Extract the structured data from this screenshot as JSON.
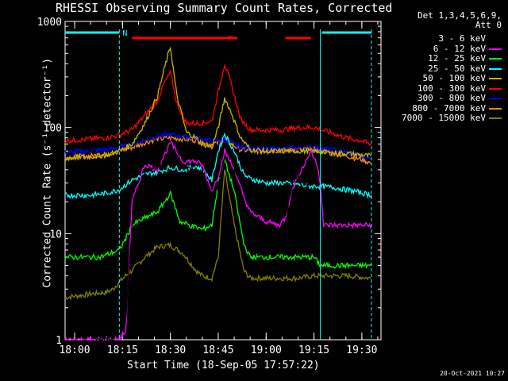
{
  "title": "RHESSI Observing Summary Count Rates, Corrected",
  "timestamp": "20-Oct-2021 10:27",
  "legend_header": [
    "Det 1,3,4,5,6,9,",
    "Att 0"
  ],
  "flags": {
    "n_label": "N",
    "f_label": "F"
  },
  "chart_data": {
    "type": "line",
    "title": "RHESSI Observing Summary Count Rates, Corrected",
    "xlabel": "Start Time (18-Sep-05 17:57:22)",
    "ylabel": "Corrected Count Rate (s⁻¹ detector⁻¹)",
    "y_scale": "log",
    "ylim": [
      1,
      1000
    ],
    "xlim": [
      -3,
      96
    ],
    "x_units": "minutes after 18:00",
    "x_ticks": [
      0,
      15,
      30,
      45,
      60,
      75,
      90
    ],
    "x_tick_labels": [
      "18:00",
      "18:15",
      "18:30",
      "18:45",
      "19:00",
      "19:15",
      "19:30"
    ],
    "y_ticks": [
      1,
      10,
      100,
      1000
    ],
    "y_tick_labels": [
      "1",
      "10",
      "100",
      "1000"
    ],
    "flag_bars": [
      {
        "label": "N",
        "color": "#00ffff",
        "segments": [
          [
            -3,
            14
          ],
          [
            77.5,
            93
          ]
        ]
      },
      {
        "label": "F",
        "color": "#ff0000",
        "segments": [
          [
            18,
            51
          ],
          [
            66,
            74
          ]
        ]
      }
    ],
    "vlines": [
      {
        "x": 14,
        "color": "#00ffff",
        "style": "dashed"
      },
      {
        "x": 77,
        "color": "#00ffff",
        "style": "solid"
      },
      {
        "x": 93,
        "color": "#00ffff",
        "style": "dashed"
      }
    ],
    "series": [
      {
        "name": "3 - 6 keV",
        "color": "#000000",
        "x": [
          6,
          12,
          14,
          16,
          18,
          22,
          26,
          30,
          34,
          38,
          40,
          43,
          45,
          47,
          50,
          53,
          55,
          58,
          60,
          63,
          66,
          67,
          68,
          70,
          72,
          74,
          75
        ],
        "y": [
          1,
          1,
          1.3,
          1.5,
          12,
          38,
          42,
          55,
          42,
          40,
          38,
          22,
          28,
          55,
          38,
          15,
          10,
          9,
          8.5,
          8.5,
          10,
          20,
          28,
          35,
          22,
          38,
          40
        ]
      },
      {
        "name": "6 - 12 keV",
        "color": "#ff00ff",
        "x": [
          -3,
          12,
          14,
          16,
          18,
          22,
          26,
          30,
          34,
          38,
          40,
          43,
          45,
          47,
          50,
          53,
          55,
          60,
          64,
          66,
          68,
          70,
          72,
          74,
          76,
          77,
          78,
          80,
          93
        ],
        "y": [
          1,
          1,
          1,
          1.2,
          20,
          45,
          40,
          72,
          48,
          48,
          44,
          25,
          35,
          60,
          40,
          22,
          16,
          13,
          12,
          14,
          25,
          35,
          45,
          60,
          45,
          30,
          12,
          12,
          12
        ]
      },
      {
        "name": "12 - 25 keV",
        "color": "#00ff00",
        "x": [
          -3,
          5,
          8,
          11,
          14,
          16,
          18,
          22,
          26,
          30,
          33,
          36,
          40,
          43,
          45,
          47,
          50,
          53,
          55,
          60,
          65,
          70,
          75,
          77,
          80,
          86,
          93
        ],
        "y": [
          6,
          6,
          6,
          6.5,
          7,
          9,
          12,
          14,
          16,
          24,
          13,
          12,
          11,
          12,
          30,
          50,
          25,
          8,
          6,
          6,
          6,
          6,
          6,
          5,
          5,
          5,
          5
        ]
      },
      {
        "name": "25 - 50 keV",
        "color": "#00ffff",
        "x": [
          -3,
          5,
          10,
          14,
          18,
          22,
          26,
          30,
          34,
          38,
          40,
          43,
          45,
          47,
          50,
          53,
          55,
          60,
          65,
          70,
          74,
          77,
          82,
          88,
          93
        ],
        "y": [
          23,
          23,
          24,
          26,
          32,
          36,
          38,
          42,
          40,
          43,
          40,
          32,
          60,
          88,
          60,
          36,
          33,
          30,
          30,
          29,
          28,
          28,
          27,
          25,
          23
        ]
      },
      {
        "name": "50 - 100 keV",
        "color": "#c8b400",
        "x": [
          -3,
          5,
          10,
          14,
          18,
          22,
          26,
          28,
          30,
          32,
          35,
          38,
          40,
          43,
          45,
          47,
          49,
          52,
          55,
          60,
          65,
          70,
          75,
          80,
          85,
          90,
          93
        ],
        "y": [
          52,
          53,
          55,
          60,
          70,
          110,
          200,
          350,
          580,
          200,
          90,
          80,
          70,
          65,
          100,
          190,
          140,
          80,
          62,
          60,
          60,
          60,
          60,
          58,
          57,
          55,
          54
        ]
      },
      {
        "name": "100 - 300 keV",
        "color": "#ff0000",
        "x": [
          -3,
          5,
          10,
          14,
          18,
          22,
          26,
          28,
          30,
          32,
          35,
          38,
          40,
          43,
          45,
          47,
          49,
          52,
          55,
          60,
          65,
          70,
          75,
          80,
          85,
          90,
          93
        ],
        "y": [
          75,
          78,
          80,
          85,
          95,
          130,
          180,
          260,
          330,
          170,
          110,
          110,
          110,
          115,
          220,
          400,
          260,
          120,
          95,
          95,
          95,
          100,
          100,
          90,
          80,
          75,
          68
        ]
      },
      {
        "name": "300 - 800 keV",
        "color": "#0000ff",
        "x": [
          -3,
          5,
          10,
          14,
          18,
          22,
          26,
          30,
          34,
          38,
          40,
          43,
          45,
          47,
          49,
          52,
          55,
          60,
          65,
          70,
          75,
          80,
          85,
          90,
          93
        ],
        "y": [
          58,
          60,
          62,
          65,
          70,
          76,
          82,
          86,
          82,
          80,
          78,
          75,
          75,
          78,
          72,
          65,
          64,
          62,
          63,
          64,
          65,
          62,
          58,
          54,
          50
        ]
      },
      {
        "name": "800 - 7000 keV",
        "color": "#ff8c00",
        "x": [
          -3,
          5,
          10,
          14,
          18,
          22,
          26,
          30,
          34,
          38,
          40,
          43,
          45,
          47,
          49,
          52,
          55,
          60,
          65,
          70,
          75,
          80,
          85,
          90,
          93
        ],
        "y": [
          52,
          54,
          56,
          60,
          65,
          72,
          78,
          80,
          78,
          76,
          72,
          70,
          72,
          76,
          70,
          62,
          60,
          60,
          61,
          62,
          62,
          58,
          54,
          50,
          46
        ]
      },
      {
        "name": "7000 - 15000 keV",
        "color": "#808000",
        "x": [
          -3,
          5,
          10,
          12,
          14,
          16,
          18,
          22,
          26,
          30,
          34,
          38,
          40,
          43,
          45,
          47,
          50,
          53,
          55,
          60,
          65,
          70,
          75,
          77,
          80,
          86,
          93
        ],
        "y": [
          2.5,
          2.7,
          2.8,
          3,
          3.5,
          4,
          4.5,
          6,
          7.5,
          7.8,
          6.5,
          4.5,
          4,
          3.8,
          6,
          40,
          12,
          4.5,
          3.8,
          3.8,
          3.8,
          3.8,
          4,
          4,
          4,
          4,
          3.8
        ]
      }
    ]
  }
}
